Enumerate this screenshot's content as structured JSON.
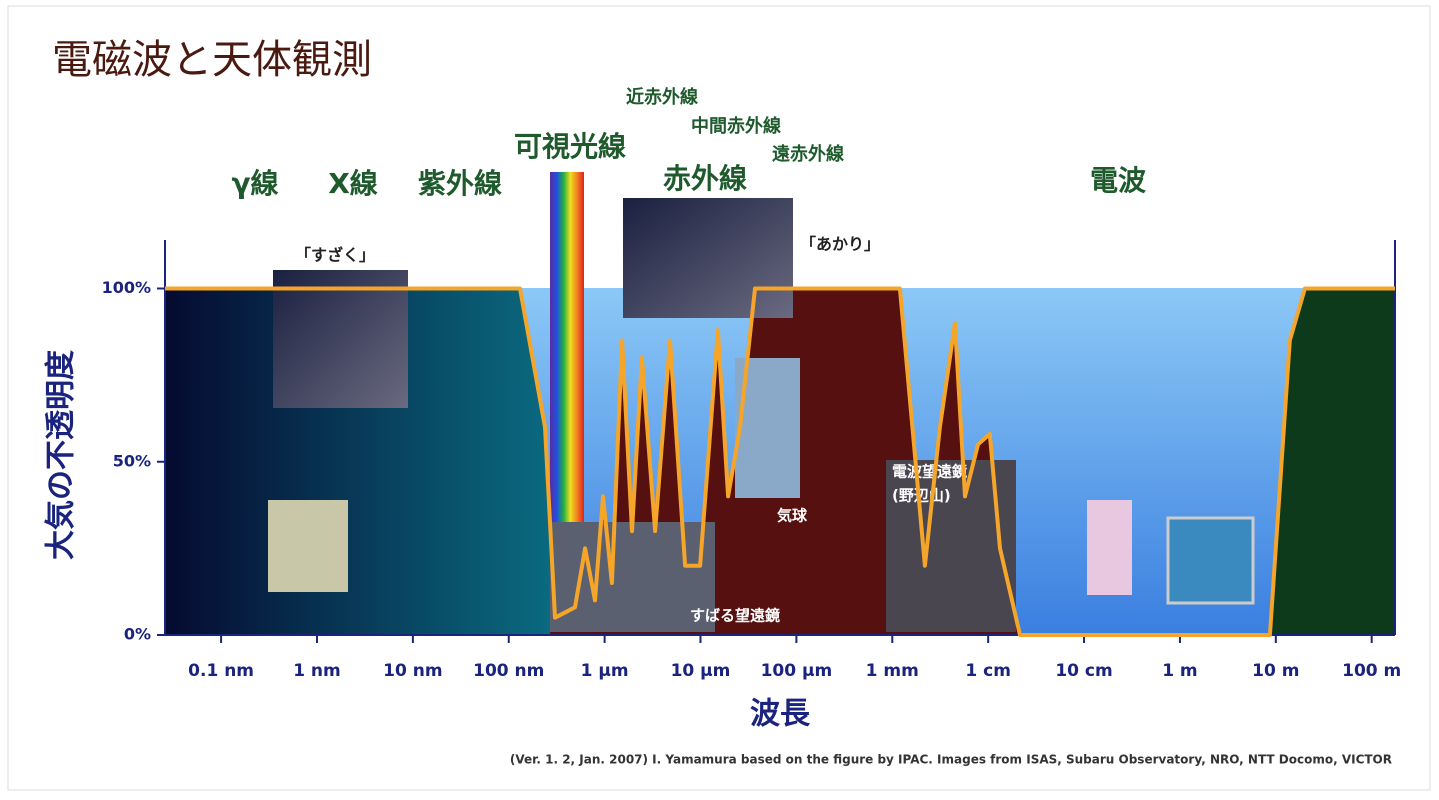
{
  "chart_data": {
    "type": "area",
    "title": "電磁波と天体観測",
    "ylabel": "大気の不透明度",
    "xlabel": "波長",
    "credit": "(Ver. 1. 2, Jan. 2007) I. Yamamura based on the figure by IPAC. Images from ISAS, Subaru Observatory, NRO, NTT Docomo, VICTOR",
    "bands": [
      "γ線",
      "X線",
      "紫外線",
      "可視光線",
      "赤外線",
      "近赤外線",
      "中間赤外線",
      "遠赤外線",
      "電波"
    ],
    "captions": [
      "「すざく」",
      "「あかり」",
      "気球",
      "すばる望遠鏡",
      "電波望遠鏡",
      "(野辺山)"
    ],
    "color": "#f5a52a",
    "log_x": true,
    "x": [
      2.6e-11,
      1.31e-07,
      2.39e-07,
      3.04e-07,
      4.91e-07,
      6.25e-07,
      7.94e-07,
      9.62e-07,
      1.19e-06,
      1.52e-06,
      1.93e-06,
      2.45e-06,
      3.36e-06,
      4.81e-06,
      6.9e-06,
      9.9e-06,
      1.52e-05,
      1.94e-05,
      2.58e-05,
      3.7e-05,
      0.0012,
      0.00219,
      0.00314,
      0.0045,
      0.00573,
      0.00783,
      0.0104,
      0.0133,
      0.0215,
      8.67,
      14.0,
      20.1,
      175
    ],
    "values": [
      100,
      100,
      60,
      5,
      8,
      25,
      10,
      40,
      15,
      85,
      30,
      80,
      30,
      85,
      20,
      20,
      88,
      40,
      60,
      100,
      100,
      20,
      60,
      90,
      40,
      55,
      58,
      25,
      0,
      0,
      85,
      100,
      100
    ],
    "xlim": [
      2.6e-11,
      175
    ],
    "xticks": [
      {
        "value": 1e-10,
        "label": "0.1 nm"
      },
      {
        "value": 1e-09,
        "label": "1 nm"
      },
      {
        "value": 1e-08,
        "label": "10 nm"
      },
      {
        "value": 1e-07,
        "label": "100 nm"
      },
      {
        "value": 1e-06,
        "label": "1 µm"
      },
      {
        "value": 1e-05,
        "label": "10 µm"
      },
      {
        "value": 0.0001,
        "label": "100 µm"
      },
      {
        "value": 0.001,
        "label": "1 mm"
      },
      {
        "value": 0.01,
        "label": "1 cm"
      },
      {
        "value": 0.1,
        "label": "10 cm"
      },
      {
        "value": 1,
        "label": "1 m"
      },
      {
        "value": 10,
        "label": "10 m"
      },
      {
        "value": 100,
        "label": "100 m"
      }
    ],
    "ylim": [
      0,
      114
    ],
    "yticks": [
      {
        "value": 0,
        "label": "0%"
      },
      {
        "value": 50,
        "label": "50%"
      },
      {
        "value": 100,
        "label": "100%"
      }
    ]
  }
}
